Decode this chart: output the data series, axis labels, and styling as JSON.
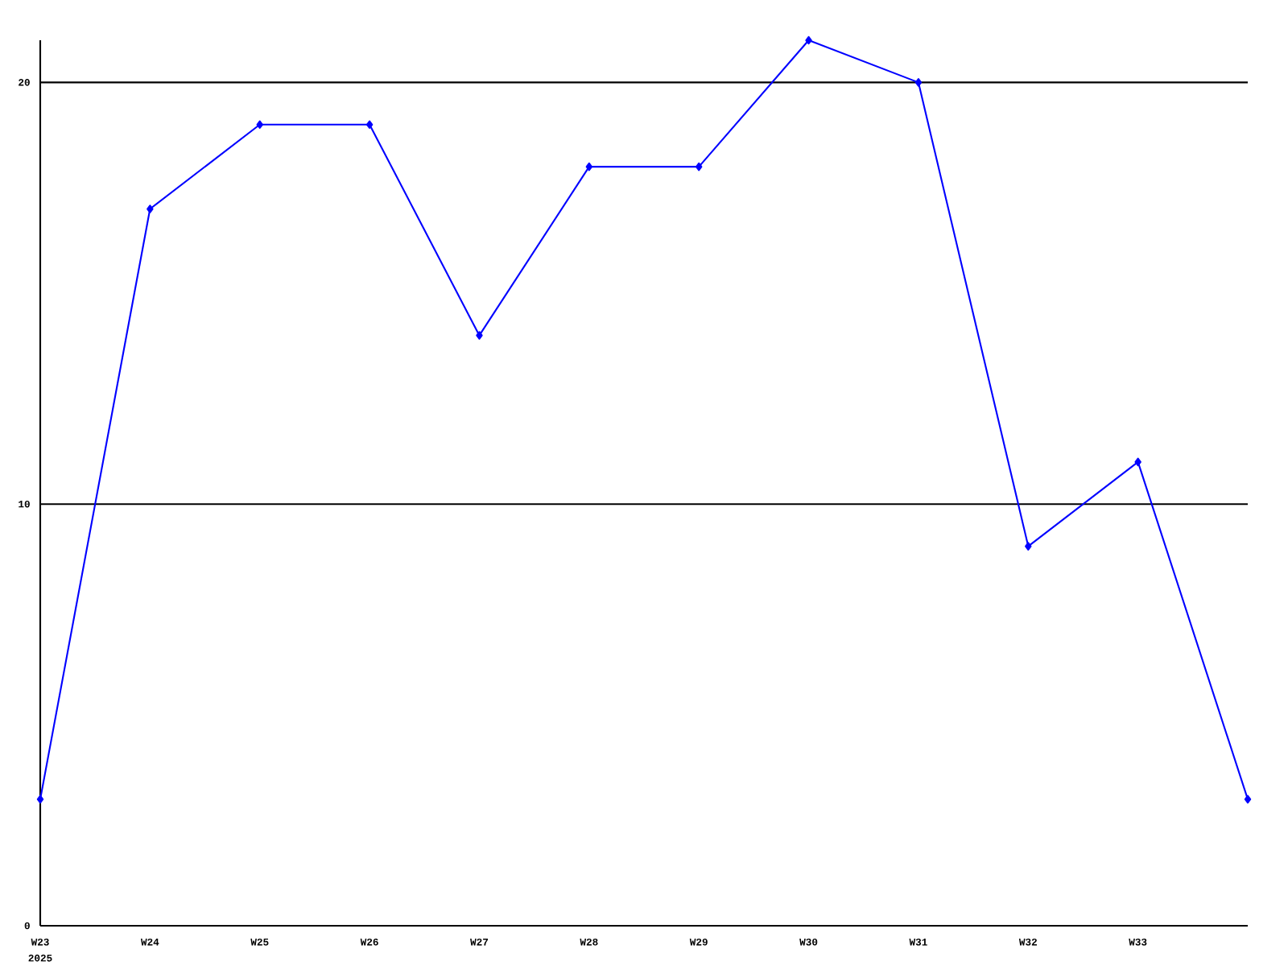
{
  "chart_data": {
    "type": "line",
    "categories": [
      "W23",
      "W24",
      "W25",
      "W26",
      "W27",
      "W28",
      "W29",
      "W30",
      "W31",
      "W32",
      "W33",
      null
    ],
    "series": [
      {
        "color": "#0000ff",
        "values": [
          3,
          17,
          19,
          19,
          14,
          18,
          18,
          21,
          20,
          9,
          11,
          3
        ]
      }
    ],
    "ylim": [
      0,
      21
    ],
    "yticks": [
      0,
      10,
      20
    ],
    "grid": "y",
    "marker": "diamond",
    "line_style": "solid",
    "annotations": [
      "2025"
    ]
  }
}
